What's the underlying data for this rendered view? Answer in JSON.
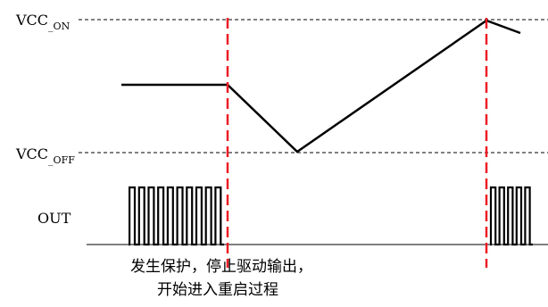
{
  "labels": {
    "vcc_on_main": "VCC",
    "vcc_on_sub": "_ON",
    "vcc_off_main": "VCC",
    "vcc_off_sub": "_OFF",
    "out": "OUT"
  },
  "annotation": {
    "line1": "发生保护，停止驱动输出，",
    "line2": "开始进入重启过程"
  },
  "colors": {
    "signal": "#000000",
    "threshold_dashed": "#000000",
    "event_marker": "#ee1c25"
  }
}
